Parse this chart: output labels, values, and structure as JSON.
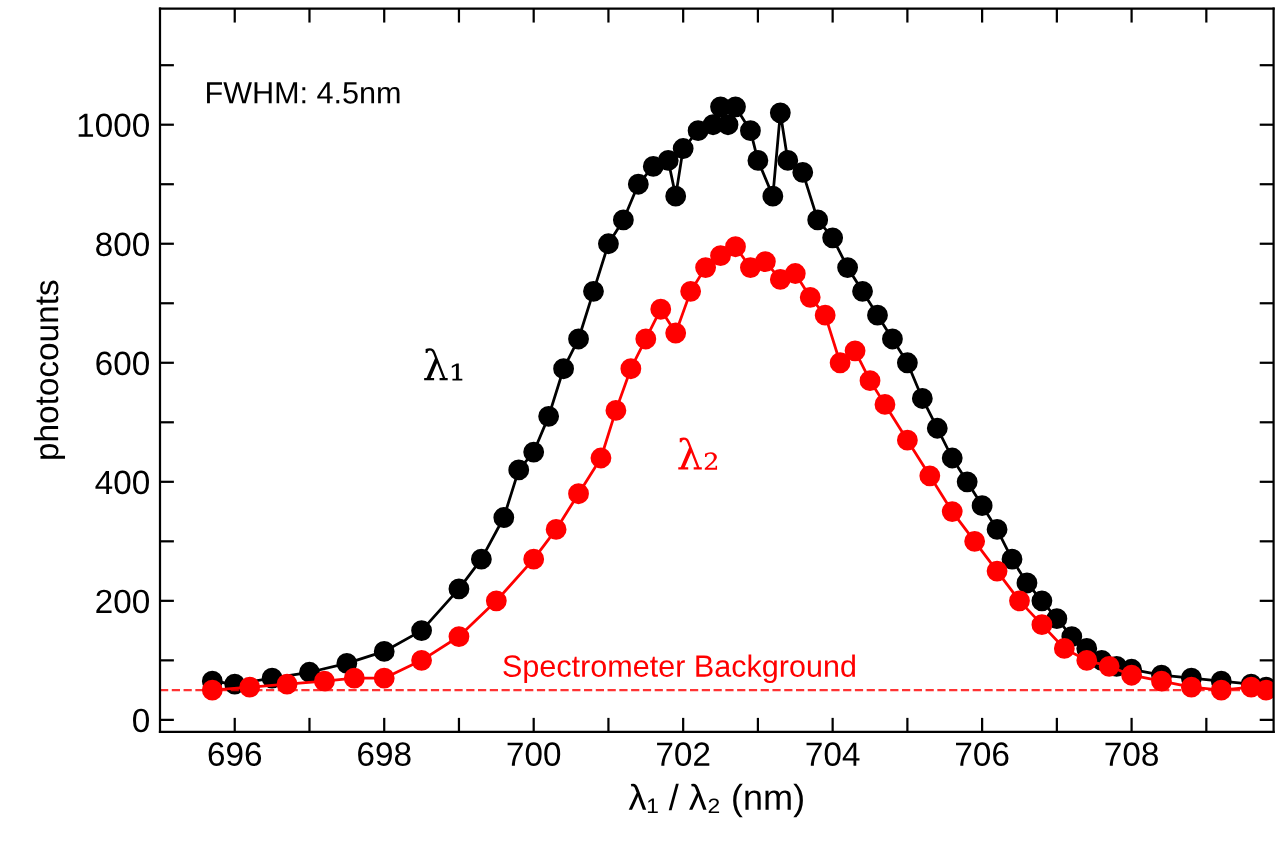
{
  "chart_data": {
    "type": "line",
    "xlabel": "λ₁ / λ₂ (nm)",
    "ylabel": "photocounts",
    "marker": "circle",
    "line_style": "solid",
    "grid": false,
    "legend": false,
    "xlim": [
      695,
      709.9
    ],
    "ylim": [
      -20,
      1195
    ],
    "xticks": [
      696,
      {
        "value": 697,
        "label": null
      },
      698,
      {
        "value": 699,
        "label": null
      },
      700,
      {
        "value": 701,
        "label": null
      },
      702,
      {
        "value": 703,
        "label": null
      },
      704,
      {
        "value": 705,
        "label": null
      },
      706,
      {
        "value": 707,
        "label": null
      },
      708,
      {
        "value": 709,
        "label": null
      }
    ],
    "yticks": [
      0,
      {
        "value": 100,
        "label": null
      },
      200,
      {
        "value": 300,
        "label": null
      },
      400,
      {
        "value": 500,
        "label": null
      },
      600,
      {
        "value": 700,
        "label": null
      },
      800,
      {
        "value": 900,
        "label": null
      },
      1000,
      {
        "value": 1100,
        "label": null
      }
    ],
    "annotations": [
      "FWHM: 4.5nm"
    ],
    "ref_lines": [
      {
        "axis": "y",
        "value": 50,
        "label": "Spectrometer Background",
        "color": "#ff0000",
        "line_style": "dashed"
      }
    ],
    "series": [
      {
        "name": "λ₁",
        "color": "#000000",
        "x": [
          695.7,
          696.0,
          696.5,
          697.0,
          697.5,
          698.0,
          698.5,
          699.0,
          699.3,
          699.6,
          699.8,
          700.0,
          700.2,
          700.4,
          700.6,
          700.8,
          701.0,
          701.2,
          701.4,
          701.6,
          701.8,
          701.9,
          702.0,
          702.2,
          702.4,
          702.5,
          702.6,
          702.7,
          702.9,
          703.0,
          703.2,
          703.3,
          703.4,
          703.6,
          703.8,
          704.0,
          704.2,
          704.4,
          704.6,
          704.8,
          705.0,
          705.2,
          705.4,
          705.6,
          705.8,
          706.0,
          706.2,
          706.4,
          706.6,
          706.8,
          707.0,
          707.2,
          707.4,
          707.6,
          707.8,
          708.0,
          708.4,
          708.8,
          709.2,
          709.6,
          709.8
        ],
        "values": [
          65,
          60,
          70,
          80,
          95,
          115,
          150,
          220,
          270,
          340,
          420,
          450,
          510,
          590,
          640,
          720,
          800,
          840,
          900,
          930,
          940,
          880,
          960,
          990,
          1000,
          1030,
          1000,
          1030,
          990,
          940,
          880,
          1020,
          940,
          920,
          840,
          810,
          760,
          720,
          680,
          640,
          600,
          540,
          490,
          440,
          400,
          360,
          320,
          270,
          230,
          200,
          170,
          140,
          120,
          100,
          90,
          85,
          75,
          70,
          65,
          60,
          55
        ]
      },
      {
        "name": "λ₂",
        "color": "#ff0000",
        "x": [
          695.7,
          696.2,
          696.7,
          697.2,
          697.6,
          698.0,
          698.5,
          699.0,
          699.5,
          700.0,
          700.3,
          700.6,
          700.9,
          701.1,
          701.3,
          701.5,
          701.7,
          701.9,
          702.1,
          702.3,
          702.5,
          702.7,
          702.9,
          703.1,
          703.3,
          703.5,
          703.7,
          703.9,
          704.1,
          704.3,
          704.5,
          704.7,
          705.0,
          705.3,
          705.6,
          705.9,
          706.2,
          706.5,
          706.8,
          707.1,
          707.4,
          707.7,
          708.0,
          708.4,
          708.8,
          709.2,
          709.6,
          709.8
        ],
        "values": [
          50,
          55,
          60,
          65,
          70,
          70,
          100,
          140,
          200,
          270,
          320,
          380,
          440,
          520,
          590,
          640,
          690,
          650,
          720,
          760,
          780,
          795,
          760,
          770,
          740,
          750,
          710,
          680,
          600,
          620,
          570,
          530,
          470,
          410,
          350,
          300,
          250,
          200,
          160,
          120,
          100,
          90,
          75,
          65,
          55,
          50,
          55,
          50
        ]
      }
    ]
  }
}
